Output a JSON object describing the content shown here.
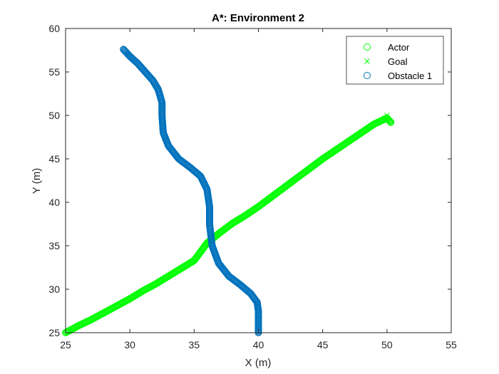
{
  "chart_data": {
    "type": "scatter",
    "title": "A*: Environment 2",
    "xlabel": "X (m)",
    "ylabel": "Y (m)",
    "xlim": [
      25,
      55
    ],
    "ylim": [
      25,
      60
    ],
    "xticks": [
      25,
      30,
      35,
      40,
      45,
      50,
      55
    ],
    "yticks": [
      25,
      30,
      35,
      40,
      45,
      50,
      55,
      60
    ],
    "grid": false,
    "legend_position": "top-right",
    "series": [
      {
        "name": "Actor",
        "marker": "circle",
        "color": "#00ff00",
        "x": [
          25.0,
          26.0,
          27.0,
          28.0,
          29.0,
          30.0,
          31.0,
          32.0,
          33.0,
          34.0,
          35.0,
          36.0,
          37.0,
          38.0,
          39.0,
          40.0,
          41.0,
          42.0,
          43.0,
          44.0,
          45.0,
          46.0,
          47.0,
          48.0,
          49.0,
          50.0,
          50.3
        ],
        "y": [
          25.0,
          25.8,
          26.5,
          27.3,
          28.1,
          28.9,
          29.8,
          30.6,
          31.5,
          32.4,
          33.3,
          35.3,
          36.5,
          37.6,
          38.5,
          39.5,
          40.6,
          41.7,
          42.8,
          43.9,
          45.0,
          46.0,
          47.0,
          48.0,
          49.0,
          49.7,
          49.2
        ]
      },
      {
        "name": "Goal",
        "marker": "x",
        "color": "#00ff00",
        "x": [
          50.0
        ],
        "y": [
          50.0
        ]
      },
      {
        "name": "Obstacle 1",
        "marker": "circle",
        "color": "#0072bd",
        "x": [
          29.5,
          30.0,
          30.6,
          31.2,
          31.8,
          32.2,
          32.5,
          32.5,
          32.6,
          33.0,
          33.8,
          34.7,
          35.5,
          36.0,
          36.2,
          36.2,
          36.4,
          36.9,
          37.7,
          38.6,
          39.4,
          39.9,
          40.0,
          40.0,
          40.0
        ],
        "y": [
          57.6,
          56.8,
          56.0,
          55.0,
          54.0,
          53.0,
          51.5,
          50.0,
          48.0,
          46.5,
          45.0,
          44.0,
          43.0,
          41.5,
          39.5,
          37.5,
          35.0,
          33.0,
          31.5,
          30.5,
          29.5,
          28.5,
          27.5,
          26.0,
          25.0
        ]
      }
    ]
  }
}
